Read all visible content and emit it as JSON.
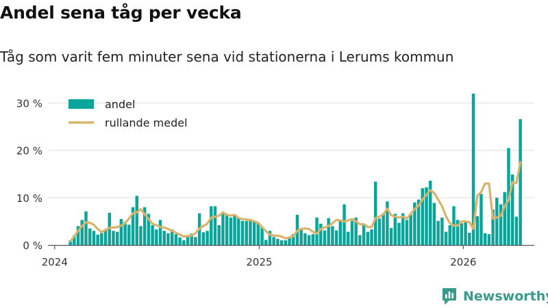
{
  "header": {
    "title": "Andel sena tåg per vecka",
    "subtitle": "Tåg som varit fem minuter sena vid stationerna i Lerums kommun"
  },
  "brand": {
    "name": "Newsworthy",
    "icon": "newsworthy-logo-icon"
  },
  "colors": {
    "bar": "#0aa59a",
    "line": "#d9b36b",
    "grid": "#dddddd",
    "axis": "#555555",
    "text": "#333333"
  },
  "chart_data": {
    "type": "bar",
    "x_axis": {
      "type": "date",
      "ticks": [
        "2024",
        "2025",
        "2026"
      ],
      "range": [
        "2023-12-20",
        "2026-05-08"
      ]
    },
    "y_axis": {
      "ticks": [
        "0 %",
        "10 %",
        "20 %",
        "30 %"
      ],
      "tick_values": [
        0,
        10,
        20,
        30
      ],
      "ylim": [
        0,
        35
      ],
      "grid": true
    },
    "legend": {
      "position": "top-left",
      "items": [
        {
          "label": "andel",
          "kind": "bar"
        },
        {
          "label": "rullande medel",
          "kind": "line"
        }
      ]
    },
    "series": [
      {
        "name": "andel",
        "kind": "bar",
        "x_start": "2024-01-29",
        "x_step": "1 week",
        "values": [
          1.0,
          2.0,
          4.0,
          5.3,
          7.1,
          3.5,
          3.0,
          2.2,
          2.5,
          3.3,
          6.8,
          3.0,
          2.8,
          5.5,
          4.9,
          4.3,
          8.0,
          10.4,
          4.0,
          8.0,
          6.6,
          4.2,
          3.3,
          5.3,
          3.0,
          2.5,
          3.3,
          2.3,
          1.6,
          1.0,
          2.1,
          2.4,
          1.7,
          6.7,
          2.7,
          3.0,
          8.2,
          8.2,
          4.2,
          6.8,
          6.3,
          5.8,
          6.4,
          5.7,
          5.1,
          5.1,
          5.5,
          5.0,
          4.6,
          3.7,
          1.1,
          3.0,
          1.7,
          1.3,
          1.0,
          1.0,
          1.5,
          2.3,
          6.4,
          3.2,
          2.5,
          2.1,
          2.3,
          5.8,
          4.5,
          3.1,
          5.7,
          4.0,
          3.1,
          5.0,
          8.6,
          2.8,
          5.1,
          5.8,
          2.1,
          4.2,
          2.8,
          3.3,
          13.4,
          5.6,
          6.7,
          9.2,
          3.6,
          6.6,
          4.7,
          6.7,
          5.3,
          6.4,
          9.0,
          9.6,
          12.0,
          12.2,
          13.6,
          8.9,
          5.1,
          5.8,
          2.8,
          4.2,
          8.2,
          5.3,
          4.6,
          5.0,
          2.6,
          32.0,
          6.1,
          10.8,
          2.5,
          2.3,
          7.5,
          10.0,
          8.6,
          11.2,
          20.5,
          14.9,
          6.0,
          26.6
        ]
      },
      {
        "name": "rullande medel",
        "kind": "line",
        "x_start": "2024-01-29",
        "x_step": "1 week",
        "values": [
          0.8,
          1.8,
          3.0,
          4.0,
          4.8,
          4.7,
          4.3,
          3.4,
          2.7,
          3.2,
          3.6,
          3.7,
          3.8,
          4.1,
          4.6,
          5.6,
          6.7,
          6.9,
          7.6,
          6.5,
          5.5,
          4.5,
          4.2,
          3.8,
          3.7,
          3.4,
          3.0,
          2.6,
          2.2,
          1.8,
          1.9,
          2.0,
          2.5,
          3.5,
          4.0,
          4.5,
          5.8,
          6.0,
          6.2,
          6.9,
          6.4,
          6.2,
          6.4,
          5.7,
          5.5,
          5.4,
          5.3,
          5.0,
          4.7,
          3.8,
          2.9,
          2.2,
          2.0,
          2.0,
          1.8,
          1.4,
          1.6,
          1.9,
          3.0,
          3.4,
          3.5,
          3.4,
          2.8,
          2.4,
          3.4,
          3.7,
          4.0,
          4.6,
          5.3,
          5.2,
          5.0,
          5.2,
          5.5,
          5.0,
          4.4,
          4.4,
          3.8,
          3.8,
          5.7,
          6.0,
          6.5,
          7.7,
          6.3,
          6.0,
          5.8,
          6.0,
          5.6,
          6.6,
          7.6,
          8.3,
          9.6,
          10.6,
          11.6,
          11.0,
          9.6,
          8.2,
          6.1,
          4.6,
          4.1,
          4.1,
          5.0,
          5.0,
          4.8,
          3.4,
          10.4,
          11.2,
          13.0,
          13.0,
          5.6,
          5.8,
          6.2,
          8.2,
          9.5,
          13.3,
          13.1,
          17.5
        ]
      }
    ]
  }
}
